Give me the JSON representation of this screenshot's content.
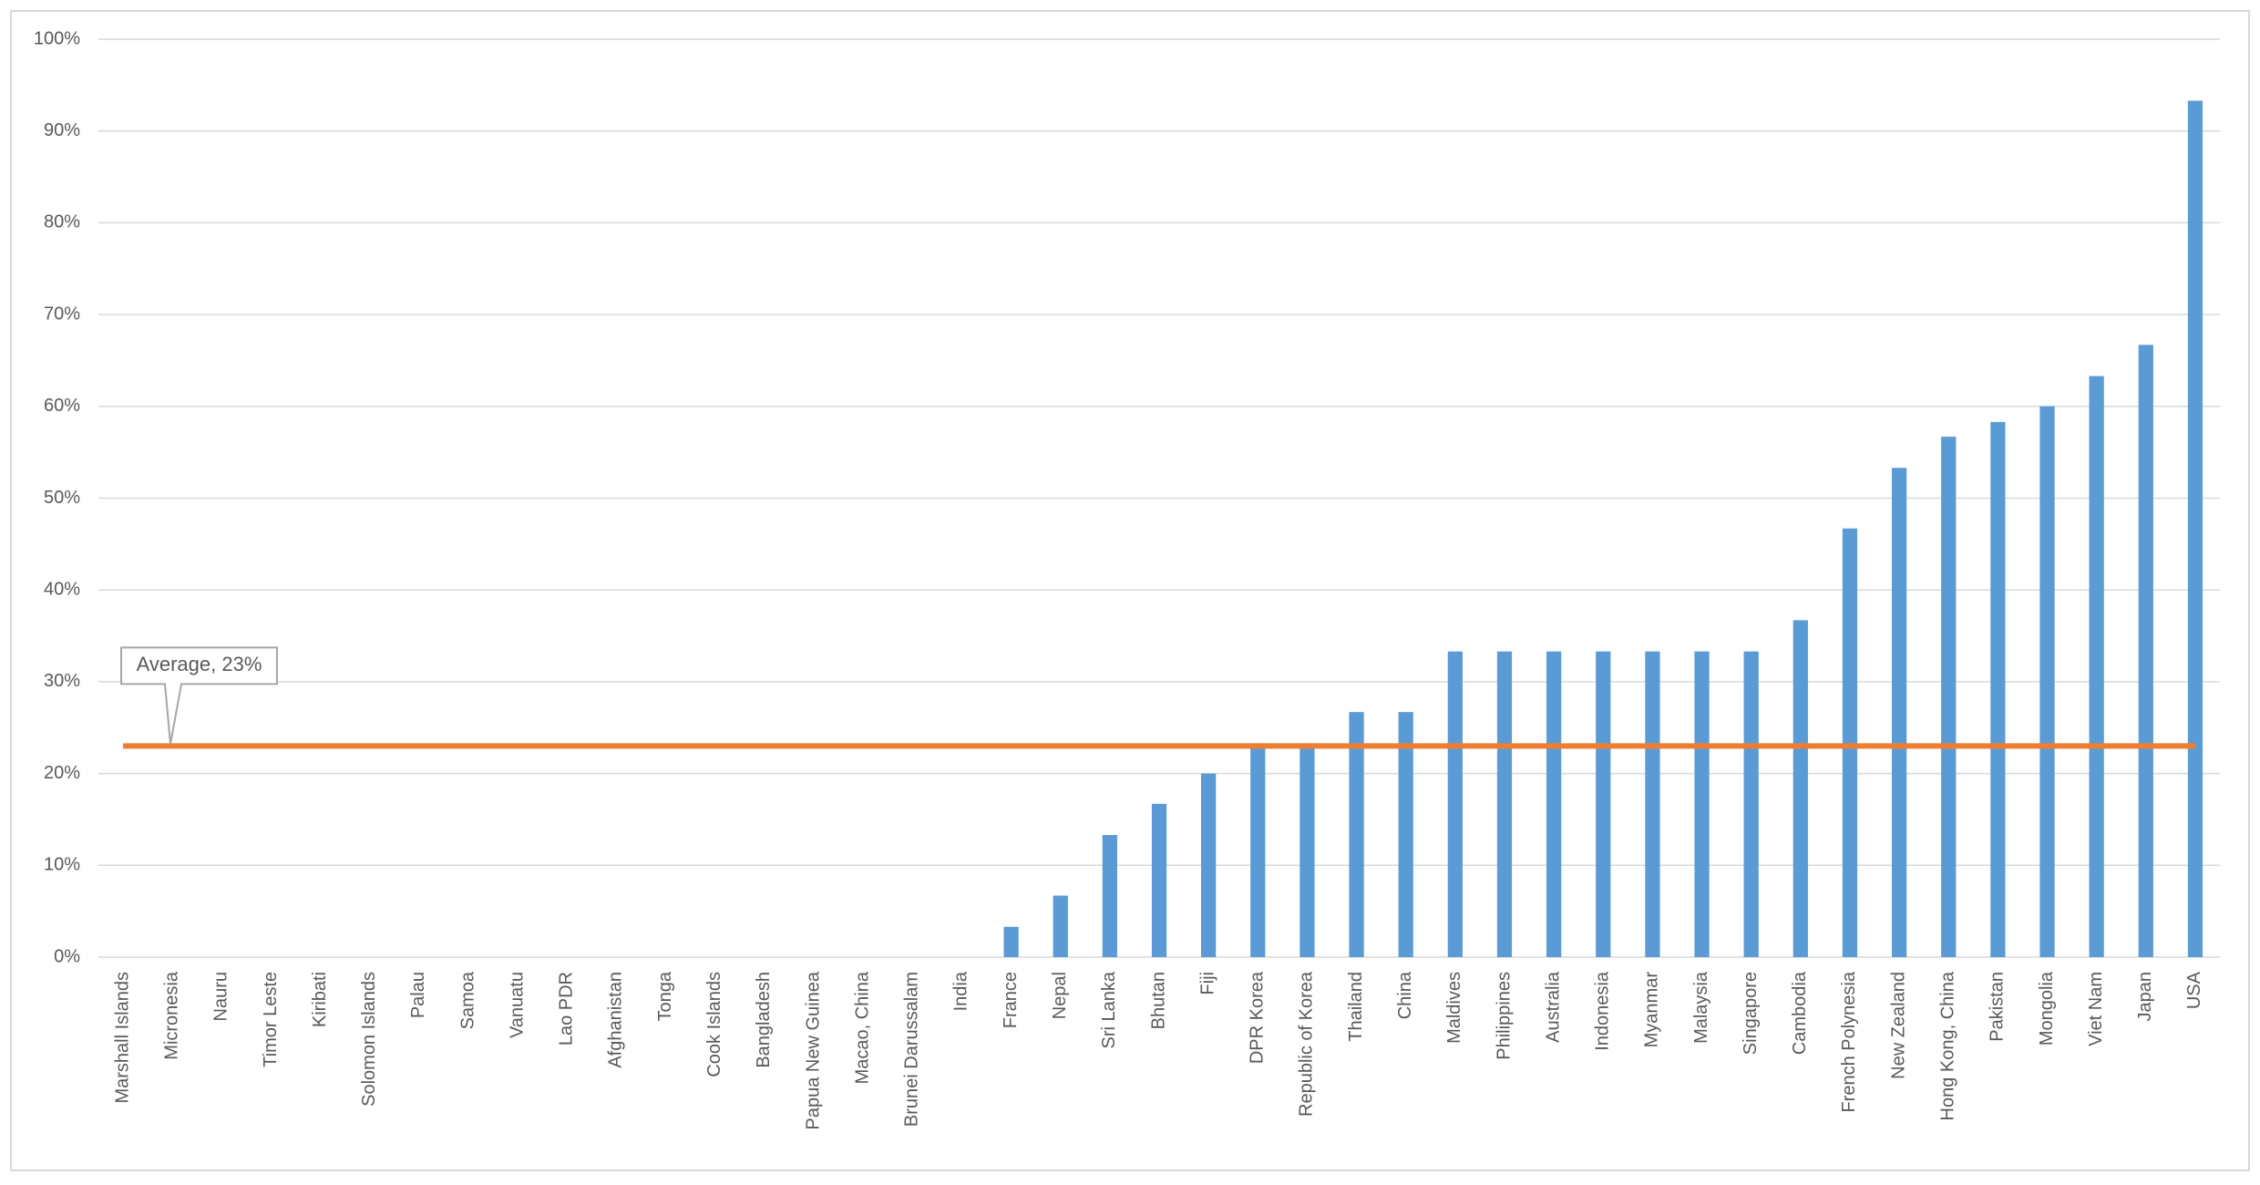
{
  "chart_data": {
    "type": "bar",
    "categories": [
      "Marshall Islands",
      "Micronesia",
      "Nauru",
      "Timor Leste",
      "Kiribati",
      "Solomon Islands",
      "Palau",
      "Samoa",
      "Vanuatu",
      "Lao PDR",
      "Afghanistan",
      "Tonga",
      "Cook Islands",
      "Bangladesh",
      "Papua New Guinea",
      "Macao, China",
      "Brunei Darussalam",
      "India",
      "France",
      "Nepal",
      "Sri Lanka",
      "Bhutan",
      "Fiji",
      "DPR Korea",
      "Republic of Korea",
      "Thailand",
      "China",
      "Maldives",
      "Philippines",
      "Australia",
      "Indonesia",
      "Myanmar",
      "Malaysia",
      "Singapore",
      "Cambodia",
      "French Polynesia",
      "New Zealand",
      "Hong Kong, China",
      "Pakistan",
      "Mongolia",
      "Viet Nam",
      "Japan",
      "USA"
    ],
    "values": [
      0,
      0,
      0,
      0,
      0,
      0,
      0,
      0,
      0,
      0,
      0,
      0,
      0,
      0,
      0,
      0,
      0,
      0,
      3.3,
      6.7,
      13.3,
      16.7,
      20,
      23.3,
      23.3,
      26.7,
      26.7,
      33.3,
      33.3,
      33.3,
      33.3,
      33.3,
      33.3,
      33.3,
      36.7,
      46.7,
      53.3,
      56.7,
      58.3,
      60,
      63.3,
      66.7,
      93.3
    ],
    "color": "#5b9bd5",
    "average": {
      "value": 23,
      "label": "Average, 23%",
      "color": "#ed7d31"
    },
    "ylim": [
      0,
      100
    ],
    "yticks": [
      {
        "value": 0,
        "label": "0%"
      },
      {
        "value": 10,
        "label": "10%"
      },
      {
        "value": 20,
        "label": "20%"
      },
      {
        "value": 30,
        "label": "30%"
      },
      {
        "value": 40,
        "label": "40%"
      },
      {
        "value": 50,
        "label": "50%"
      },
      {
        "value": 60,
        "label": "60%"
      },
      {
        "value": 70,
        "label": "70%"
      },
      {
        "value": 80,
        "label": "80%"
      },
      {
        "value": 90,
        "label": "90%"
      },
      {
        "value": 100,
        "label": "100%"
      }
    ],
    "grid": true
  }
}
